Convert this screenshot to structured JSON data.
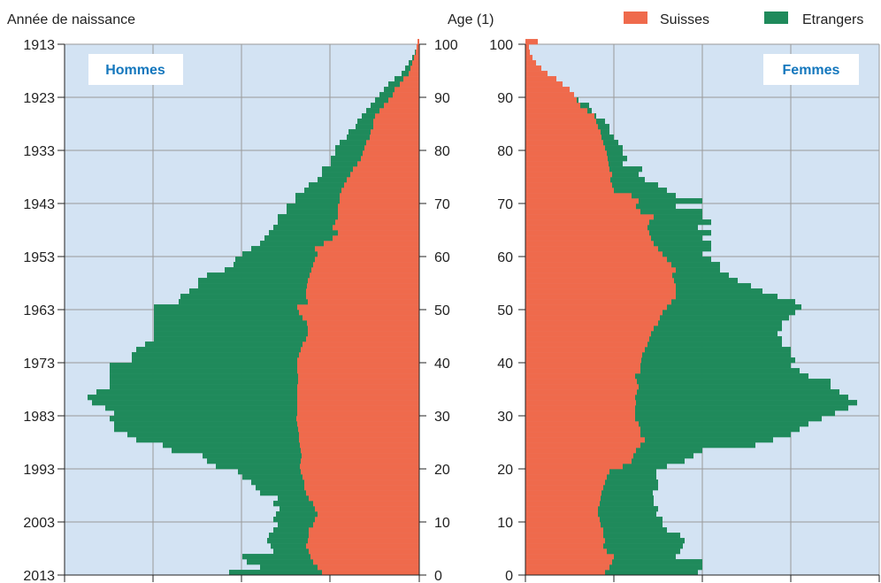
{
  "chart_data": {
    "type": "bar",
    "subtype": "population-pyramid",
    "title": "",
    "left_axis_label": "Année de naissance",
    "center_axis_label": "Age (1)",
    "year_ticks": [
      "1913",
      "1923",
      "1933",
      "1943",
      "1953",
      "1963",
      "1973",
      "1983",
      "1993",
      "2003",
      "2013"
    ],
    "age_ticks": [
      "100",
      "90",
      "80",
      "70",
      "60",
      "50",
      "40",
      "30",
      "20",
      "10",
      "0"
    ],
    "age_range": [
      0,
      100
    ],
    "grid": true,
    "legend_position": "top-right",
    "colors": {
      "suisses": "#ef6a4c",
      "etrangers": "#1f8a5b",
      "background": "#d3e3f3",
      "panel_title": "#1477bd"
    },
    "series": [
      {
        "name": "Suisses",
        "color": "#ef6a4c"
      },
      {
        "name": "Etrangers",
        "color": "#1f8a5b"
      }
    ],
    "panels": [
      {
        "name": "Hommes",
        "suisses_x10": [
          110,
          115,
          120,
          123,
          125,
          128,
          126,
          125,
          125,
          120,
          118,
          115,
          118,
          120,
          125,
          128,
          130,
          130,
          132,
          134,
          135,
          134,
          133,
          134,
          135,
          136,
          136,
          137,
          138,
          139,
          138,
          138,
          138,
          138,
          138,
          138,
          137,
          137,
          138,
          138,
          138,
          136,
          134,
          132,
          128,
          126,
          126,
          127,
          132,
          136,
          138,
          126,
          128,
          128,
          127,
          126,
          124,
          122,
          120,
          118,
          115,
          118,
          108,
          98,
          92,
          98,
          95,
          92,
          92,
          92,
          90,
          90,
          88,
          85,
          82,
          78,
          75,
          70,
          66,
          64,
          62,
          60,
          56,
          55,
          52,
          52,
          50,
          45,
          40,
          35,
          30,
          28,
          22,
          18,
          12,
          10,
          8,
          6,
          4,
          3,
          2
        ],
        "total_x10": [
          215,
          180,
          195,
          200,
          165,
          168,
          172,
          170,
          165,
          160,
          165,
          162,
          158,
          165,
          160,
          180,
          185,
          190,
          200,
          205,
          230,
          240,
          245,
          280,
          290,
          320,
          330,
          345,
          345,
          350,
          345,
          355,
          370,
          375,
          365,
          350,
          350,
          350,
          350,
          350,
          325,
          325,
          320,
          310,
          300,
          300,
          300,
          300,
          300,
          300,
          300,
          272,
          270,
          260,
          250,
          250,
          240,
          220,
          210,
          208,
          200,
          190,
          180,
          175,
          170,
          165,
          160,
          160,
          150,
          150,
          140,
          140,
          130,
          125,
          115,
          110,
          110,
          100,
          100,
          95,
          95,
          90,
          82,
          80,
          72,
          70,
          65,
          60,
          55,
          50,
          45,
          40,
          35,
          28,
          20,
          16,
          12,
          8,
          5,
          3,
          2
        ]
      },
      {
        "name": "Femmes",
        "suisses_x10": [
          90,
          95,
          98,
          100,
          92,
          88,
          90,
          88,
          88,
          85,
          84,
          82,
          82,
          84,
          85,
          86,
          88,
          90,
          92,
          95,
          110,
          120,
          122,
          125,
          130,
          135,
          130,
          130,
          128,
          124,
          124,
          124,
          125,
          124,
          126,
          128,
          126,
          124,
          130,
          130,
          131,
          132,
          135,
          138,
          140,
          142,
          145,
          150,
          152,
          155,
          160,
          165,
          170,
          170,
          170,
          168,
          166,
          170,
          165,
          160,
          155,
          150,
          145,
          142,
          140,
          138,
          140,
          145,
          130,
          125,
          128,
          120,
          100,
          98,
          96,
          98,
          95,
          94,
          93,
          92,
          90,
          88,
          86,
          85,
          82,
          80,
          78,
          70,
          62,
          58,
          55,
          50,
          42,
          35,
          25,
          18,
          12,
          8,
          5,
          4,
          14
        ],
        "total_x10": [
          195,
          200,
          200,
          170,
          175,
          178,
          180,
          175,
          160,
          155,
          155,
          148,
          150,
          145,
          145,
          144,
          150,
          150,
          148,
          148,
          160,
          180,
          190,
          200,
          260,
          280,
          300,
          310,
          320,
          335,
          350,
          365,
          375,
          365,
          355,
          345,
          345,
          320,
          310,
          300,
          305,
          300,
          300,
          290,
          290,
          285,
          290,
          290,
          298,
          305,
          312,
          305,
          285,
          268,
          255,
          240,
          230,
          220,
          220,
          210,
          200,
          210,
          210,
          200,
          210,
          195,
          210,
          200,
          200,
          170,
          200,
          170,
          160,
          150,
          135,
          128,
          132,
          110,
          115,
          110,
          110,
          105,
          100,
          95,
          95,
          90,
          80,
          75,
          72,
          60,
          50,
          45,
          35,
          28,
          20,
          15,
          10,
          8,
          5,
          3,
          2
        ]
      }
    ]
  }
}
